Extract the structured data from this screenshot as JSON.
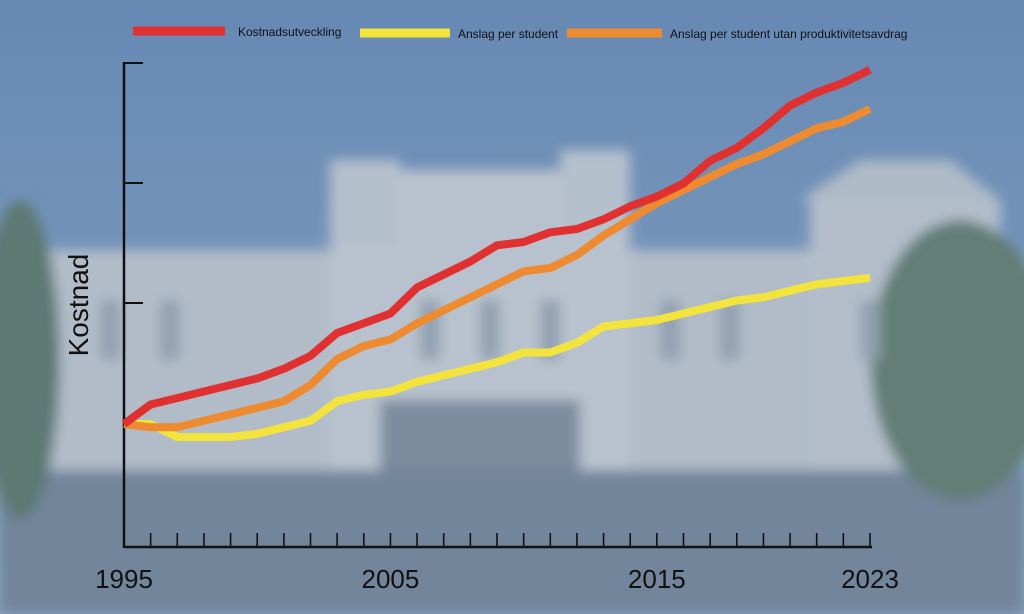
{
  "colors": {
    "sky": "#6f90b8",
    "building": "#b9c0c8",
    "ground": "#6f8095",
    "tree": "#5e7a62",
    "axis": "#111111"
  },
  "chart_data": {
    "type": "line",
    "xlabel": "",
    "ylabel": "Kostnad",
    "xlim": [
      1995,
      2023
    ],
    "x_tick_labels": [
      "1995",
      "2005",
      "2015",
      "2023"
    ],
    "x_tick_values": [
      1995,
      2005,
      2015,
      2023
    ],
    "y_axis_has_numbers": false,
    "grid": false,
    "legend_position": "top",
    "x": [
      1995,
      1996,
      1997,
      1998,
      1999,
      2000,
      2001,
      2002,
      2003,
      2004,
      2005,
      2006,
      2007,
      2008,
      2009,
      2010,
      2011,
      2012,
      2013,
      2014,
      2015,
      2016,
      2017,
      2018,
      2019,
      2020,
      2021,
      2022,
      2023
    ],
    "series": [
      {
        "name": "Kostnadsutveckling",
        "color": "#e03030",
        "values": [
          100,
          106,
          108,
          110,
          112,
          114,
          117,
          121,
          128,
          131,
          134,
          142,
          146,
          150,
          155,
          156,
          159,
          160,
          163,
          167,
          170,
          174,
          181,
          185,
          191,
          198,
          202,
          205,
          209
        ]
      },
      {
        "name": "Anslag per student",
        "color": "#f2e43c",
        "values": [
          100,
          100,
          96,
          96,
          96,
          97,
          99,
          101,
          107,
          109,
          110,
          113,
          115,
          117,
          119,
          122,
          122,
          125,
          130,
          131,
          132,
          134,
          136,
          138,
          139,
          141,
          143,
          144,
          145
        ]
      },
      {
        "name": "Anslag per student utan produktivitetsavdrag",
        "color": "#ee8a30",
        "values": [
          100,
          99,
          99,
          101,
          103,
          105,
          107,
          112,
          120,
          124,
          126,
          131,
          135,
          139,
          143,
          147,
          148,
          152,
          158,
          163,
          168,
          172,
          176,
          180,
          183,
          187,
          191,
          193,
          197
        ]
      }
    ]
  }
}
